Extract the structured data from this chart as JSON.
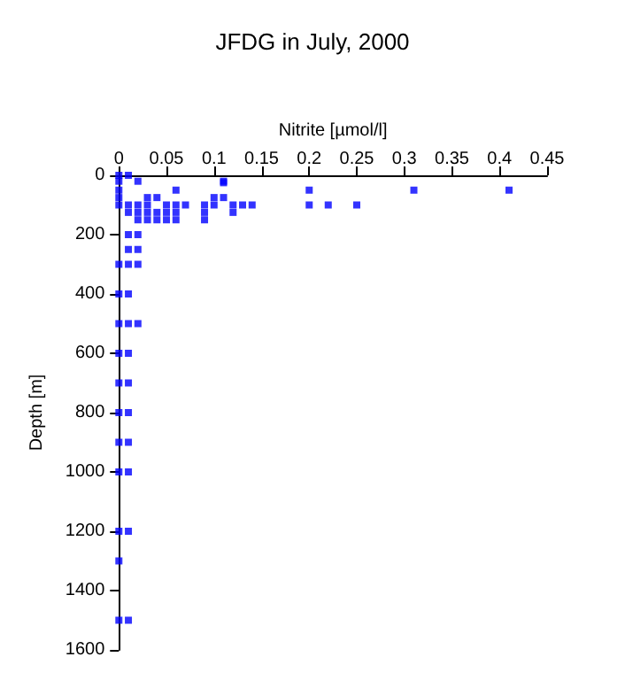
{
  "chart_data": {
    "type": "scatter",
    "title": "JFDG in July, 2000",
    "xlabel": "Nitrite [µmol/l]",
    "ylabel": "Depth [m]",
    "marker": "square",
    "grid": false,
    "xlim": [
      0,
      0.45
    ],
    "xticks": [
      0,
      0.05,
      0.1,
      0.15,
      0.2,
      0.25,
      0.3,
      0.35,
      0.4,
      0.45
    ],
    "ylim": [
      1600,
      0
    ],
    "yticks": [
      0,
      200,
      400,
      600,
      800,
      1000,
      1200,
      1400,
      1600
    ],
    "series": [
      {
        "color": "#0000ff",
        "x": [
          0,
          0.01,
          0,
          0.02,
          0.11,
          0.11,
          0,
          0.06,
          0.2,
          0.31,
          0.41,
          0,
          0.03,
          0.04,
          0.1,
          0.11,
          0,
          0.01,
          0.02,
          0.03,
          0.05,
          0.06,
          0.07,
          0.09,
          0.1,
          0.12,
          0.13,
          0.14,
          0.2,
          0.22,
          0.25,
          0.01,
          0.02,
          0.03,
          0.04,
          0.05,
          0.06,
          0.09,
          0.12,
          0.02,
          0.03,
          0.04,
          0.05,
          0.06,
          0.09,
          0.01,
          0.02,
          0.01,
          0.02,
          0,
          0.01,
          0.02,
          0,
          0.01,
          0,
          0.01,
          0.02,
          0,
          0.01,
          0,
          0.01,
          0,
          0.01,
          0,
          0.01,
          0,
          0.01,
          0,
          0.01,
          0,
          0,
          0.01
        ],
        "values": [
          0,
          0,
          20,
          20,
          20,
          25,
          50,
          50,
          50,
          50,
          50,
          75,
          75,
          75,
          75,
          75,
          100,
          100,
          100,
          100,
          100,
          100,
          100,
          100,
          100,
          100,
          100,
          100,
          100,
          100,
          100,
          125,
          125,
          125,
          125,
          125,
          125,
          125,
          125,
          150,
          150,
          150,
          150,
          150,
          150,
          200,
          200,
          250,
          250,
          300,
          300,
          300,
          400,
          400,
          500,
          500,
          500,
          600,
          600,
          700,
          700,
          800,
          800,
          900,
          900,
          1000,
          1000,
          1200,
          1200,
          1300,
          1500,
          1500
        ]
      }
    ]
  }
}
